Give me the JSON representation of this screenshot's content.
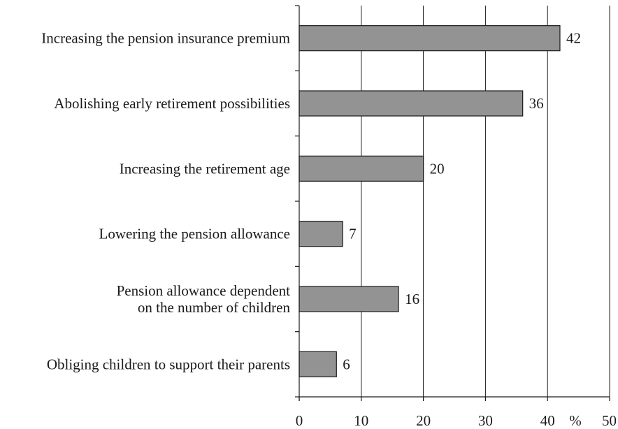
{
  "chart_data": {
    "type": "bar",
    "orientation": "horizontal",
    "categories": [
      [
        "Increasing the pension insurance premium"
      ],
      [
        "Abolishing early retirement possibilities"
      ],
      [
        "Increasing the retirement age"
      ],
      [
        "Lowering the pension allowance"
      ],
      [
        "Pension allowance dependent",
        "on the number of children"
      ],
      [
        "Obliging children to support their parents"
      ]
    ],
    "values": [
      42,
      36,
      20,
      7,
      16,
      6
    ],
    "value_labels": [
      "42",
      "36",
      "20",
      "7",
      "16",
      "6"
    ],
    "xlim": [
      0,
      50
    ],
    "xticks": [
      0,
      10,
      20,
      30,
      40,
      50
    ],
    "xtick_labels": [
      "0",
      "10",
      "20",
      "30",
      "40",
      "50"
    ],
    "unit": "%",
    "grid": "vertical",
    "colors": {
      "bar_fill": "#939393",
      "bar_stroke": "#1a1a1a",
      "grid": "#1a1a1a",
      "axis": "#1a1a1a",
      "text": "#1a1a1a"
    }
  }
}
